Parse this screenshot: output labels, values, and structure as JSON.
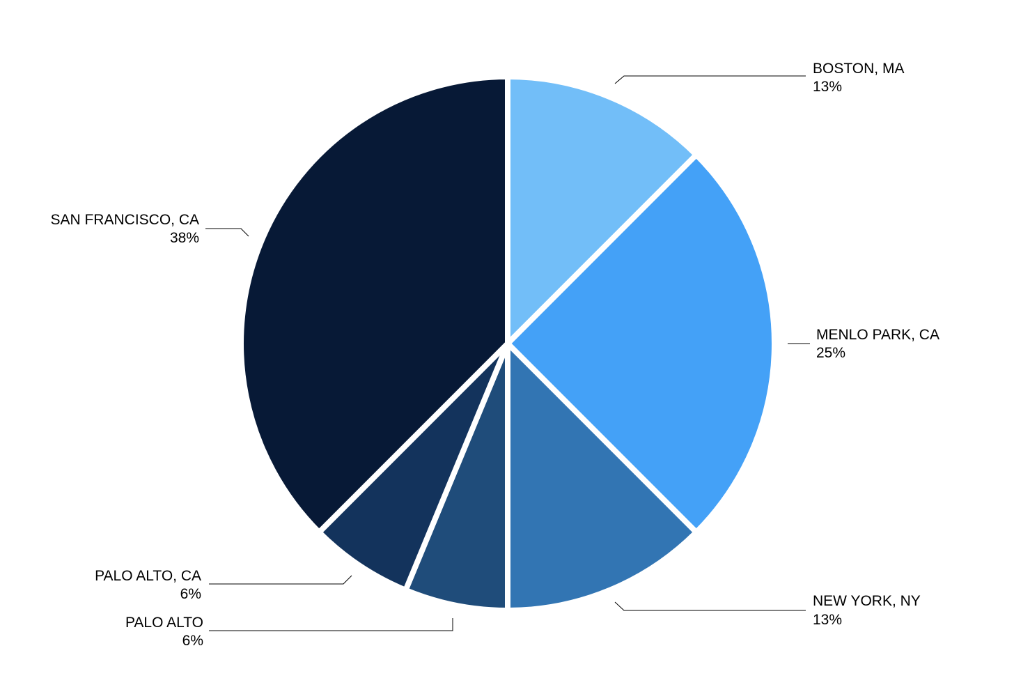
{
  "chart_data": {
    "type": "pie",
    "title": "",
    "start_angle_deg": 0,
    "direction": "clockwise",
    "slices": [
      {
        "label": "BOSTON, MA",
        "value_text": "13%",
        "value": 12.5,
        "color": "#72BEF8"
      },
      {
        "label": "MENLO PARK, CA",
        "value_text": "25%",
        "value": 25,
        "color": "#44A1F7"
      },
      {
        "label": "NEW YORK, NY",
        "value_text": "13%",
        "value": 12.5,
        "color": "#3275B3"
      },
      {
        "label": "PALO ALTO",
        "value_text": "6%",
        "value": 6.25,
        "color": "#1F4C7A"
      },
      {
        "label": "PALO ALTO, CA",
        "value_text": "6%",
        "value": 6.25,
        "color": "#13335C"
      },
      {
        "label": "SAN FRANCISCO, CA",
        "value_text": "38%",
        "value": 37.5,
        "color": "#071936"
      }
    ]
  }
}
